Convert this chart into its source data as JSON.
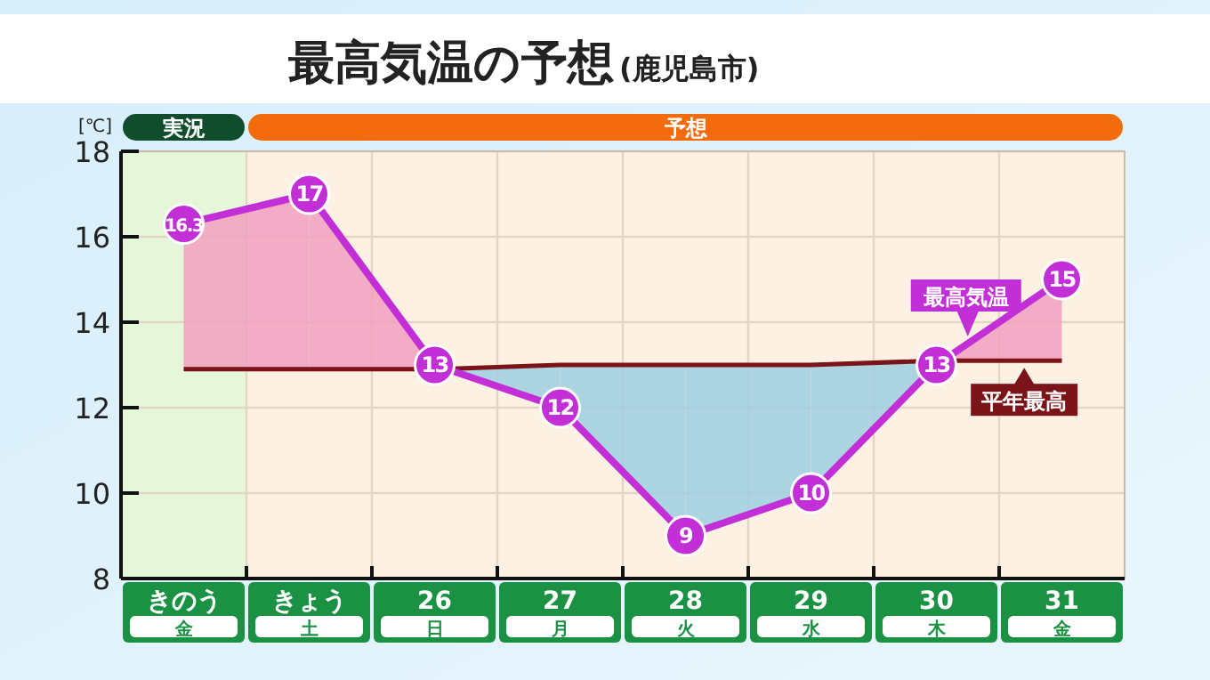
{
  "chart_data": {
    "type": "line",
    "title": "最高気温の予想",
    "subtitle": "(鹿児島市)",
    "ylabel": "[℃]",
    "categories": [
      "きのう金",
      "きょう土",
      "26日",
      "27月",
      "28火",
      "29水",
      "30木",
      "31金"
    ],
    "series": [
      {
        "name": "最高気温",
        "color": "#c22fd6",
        "marker": "circle",
        "values": [
          16.3,
          17,
          13,
          12,
          9,
          10,
          13,
          15
        ],
        "value_labels": [
          "16.3",
          "17",
          "13",
          "12",
          "9",
          "10",
          "13",
          "15"
        ]
      },
      {
        "name": "平年最高",
        "color": "#7a1418",
        "marker": "none",
        "values": [
          12.9,
          12.9,
          12.9,
          13,
          13,
          13,
          13.1,
          13.1
        ]
      }
    ],
    "bands": [
      {
        "axis": "x",
        "from": "きのう金",
        "to": "きのう金",
        "label": "実況",
        "color": "#e6f7d9"
      },
      {
        "axis": "x",
        "from": "きょう土",
        "to": "31金",
        "label": "予想",
        "color": "#fdf1e3"
      }
    ],
    "ylim": [
      8,
      18
    ],
    "yticks": [
      8,
      10,
      12,
      14,
      16,
      18
    ],
    "grid": true
  }
}
